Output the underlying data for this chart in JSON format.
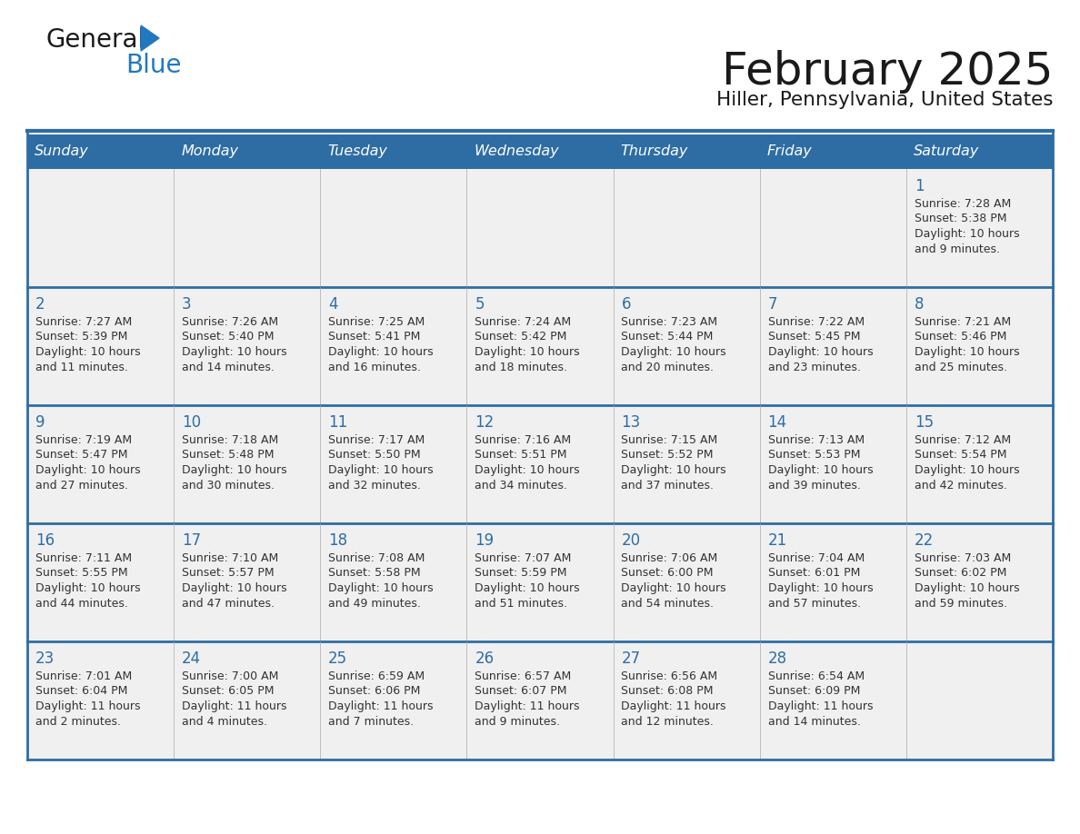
{
  "title": "February 2025",
  "subtitle": "Hiller, Pennsylvania, United States",
  "days_of_week": [
    "Sunday",
    "Monday",
    "Tuesday",
    "Wednesday",
    "Thursday",
    "Friday",
    "Saturday"
  ],
  "header_bg": "#2E6DA4",
  "header_text": "#FFFFFF",
  "cell_bg": "#F0F0F0",
  "border_color": "#2E6DA4",
  "day_num_color": "#2E6DA4",
  "text_color": "#333333",
  "logo_black": "#1a1a1a",
  "logo_blue": "#2278BF",
  "calendar_data": [
    [
      null,
      null,
      null,
      null,
      null,
      null,
      {
        "day": 1,
        "sunrise": "7:28 AM",
        "sunset": "5:38 PM",
        "daylight": "10 hours",
        "daylight2": "and 9 minutes."
      }
    ],
    [
      {
        "day": 2,
        "sunrise": "7:27 AM",
        "sunset": "5:39 PM",
        "daylight": "10 hours",
        "daylight2": "and 11 minutes."
      },
      {
        "day": 3,
        "sunrise": "7:26 AM",
        "sunset": "5:40 PM",
        "daylight": "10 hours",
        "daylight2": "and 14 minutes."
      },
      {
        "day": 4,
        "sunrise": "7:25 AM",
        "sunset": "5:41 PM",
        "daylight": "10 hours",
        "daylight2": "and 16 minutes."
      },
      {
        "day": 5,
        "sunrise": "7:24 AM",
        "sunset": "5:42 PM",
        "daylight": "10 hours",
        "daylight2": "and 18 minutes."
      },
      {
        "day": 6,
        "sunrise": "7:23 AM",
        "sunset": "5:44 PM",
        "daylight": "10 hours",
        "daylight2": "and 20 minutes."
      },
      {
        "day": 7,
        "sunrise": "7:22 AM",
        "sunset": "5:45 PM",
        "daylight": "10 hours",
        "daylight2": "and 23 minutes."
      },
      {
        "day": 8,
        "sunrise": "7:21 AM",
        "sunset": "5:46 PM",
        "daylight": "10 hours",
        "daylight2": "and 25 minutes."
      }
    ],
    [
      {
        "day": 9,
        "sunrise": "7:19 AM",
        "sunset": "5:47 PM",
        "daylight": "10 hours",
        "daylight2": "and 27 minutes."
      },
      {
        "day": 10,
        "sunrise": "7:18 AM",
        "sunset": "5:48 PM",
        "daylight": "10 hours",
        "daylight2": "and 30 minutes."
      },
      {
        "day": 11,
        "sunrise": "7:17 AM",
        "sunset": "5:50 PM",
        "daylight": "10 hours",
        "daylight2": "and 32 minutes."
      },
      {
        "day": 12,
        "sunrise": "7:16 AM",
        "sunset": "5:51 PM",
        "daylight": "10 hours",
        "daylight2": "and 34 minutes."
      },
      {
        "day": 13,
        "sunrise": "7:15 AM",
        "sunset": "5:52 PM",
        "daylight": "10 hours",
        "daylight2": "and 37 minutes."
      },
      {
        "day": 14,
        "sunrise": "7:13 AM",
        "sunset": "5:53 PM",
        "daylight": "10 hours",
        "daylight2": "and 39 minutes."
      },
      {
        "day": 15,
        "sunrise": "7:12 AM",
        "sunset": "5:54 PM",
        "daylight": "10 hours",
        "daylight2": "and 42 minutes."
      }
    ],
    [
      {
        "day": 16,
        "sunrise": "7:11 AM",
        "sunset": "5:55 PM",
        "daylight": "10 hours",
        "daylight2": "and 44 minutes."
      },
      {
        "day": 17,
        "sunrise": "7:10 AM",
        "sunset": "5:57 PM",
        "daylight": "10 hours",
        "daylight2": "and 47 minutes."
      },
      {
        "day": 18,
        "sunrise": "7:08 AM",
        "sunset": "5:58 PM",
        "daylight": "10 hours",
        "daylight2": "and 49 minutes."
      },
      {
        "day": 19,
        "sunrise": "7:07 AM",
        "sunset": "5:59 PM",
        "daylight": "10 hours",
        "daylight2": "and 51 minutes."
      },
      {
        "day": 20,
        "sunrise": "7:06 AM",
        "sunset": "6:00 PM",
        "daylight": "10 hours",
        "daylight2": "and 54 minutes."
      },
      {
        "day": 21,
        "sunrise": "7:04 AM",
        "sunset": "6:01 PM",
        "daylight": "10 hours",
        "daylight2": "and 57 minutes."
      },
      {
        "day": 22,
        "sunrise": "7:03 AM",
        "sunset": "6:02 PM",
        "daylight": "10 hours",
        "daylight2": "and 59 minutes."
      }
    ],
    [
      {
        "day": 23,
        "sunrise": "7:01 AM",
        "sunset": "6:04 PM",
        "daylight": "11 hours",
        "daylight2": "and 2 minutes."
      },
      {
        "day": 24,
        "sunrise": "7:00 AM",
        "sunset": "6:05 PM",
        "daylight": "11 hours",
        "daylight2": "and 4 minutes."
      },
      {
        "day": 25,
        "sunrise": "6:59 AM",
        "sunset": "6:06 PM",
        "daylight": "11 hours",
        "daylight2": "and 7 minutes."
      },
      {
        "day": 26,
        "sunrise": "6:57 AM",
        "sunset": "6:07 PM",
        "daylight": "11 hours",
        "daylight2": "and 9 minutes."
      },
      {
        "day": 27,
        "sunrise": "6:56 AM",
        "sunset": "6:08 PM",
        "daylight": "11 hours",
        "daylight2": "and 12 minutes."
      },
      {
        "day": 28,
        "sunrise": "6:54 AM",
        "sunset": "6:09 PM",
        "daylight": "11 hours",
        "daylight2": "and 14 minutes."
      },
      null
    ]
  ]
}
